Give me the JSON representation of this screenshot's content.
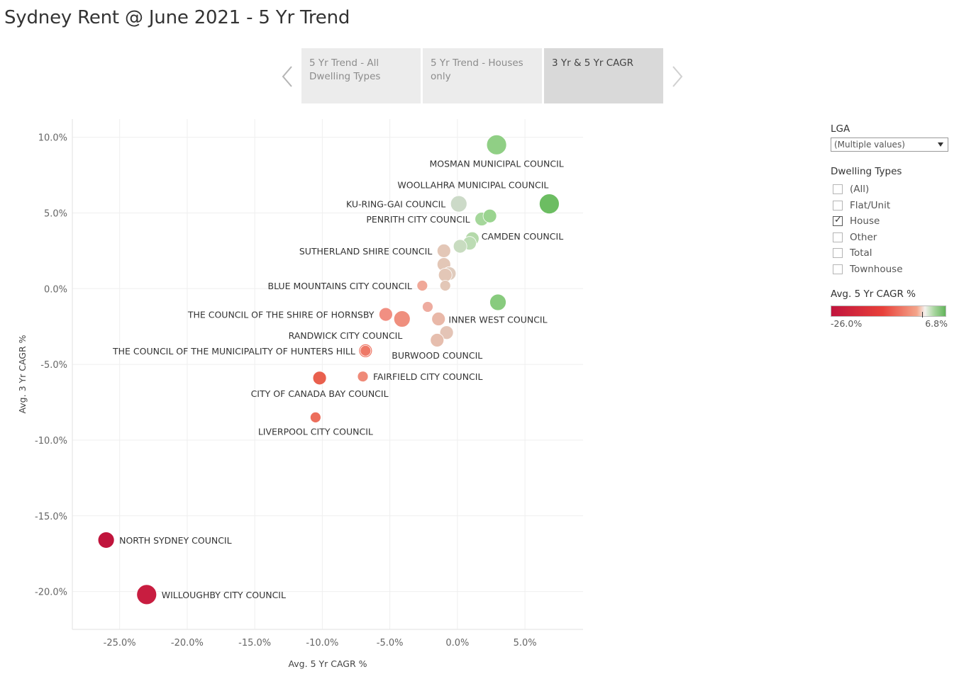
{
  "title": "Sydney Rent @ June 2021 - 5 Yr Trend",
  "nav": {
    "prev_icon": "chevron-left-icon",
    "next_icon": "chevron-right-icon",
    "tabs": [
      {
        "line1": "5 Yr Trend - All",
        "line2": "Dwelling Types"
      },
      {
        "line1": "5 Yr Trend - Houses",
        "line2": "only"
      },
      {
        "line1": "3 Yr & 5 Yr CAGR",
        "line2": ""
      }
    ]
  },
  "filters": {
    "lga_title": "LGA",
    "lga_value": "(Multiple values)",
    "dwelling_title": "Dwelling Types",
    "dwelling_options": [
      {
        "label": "(All)",
        "checked": false
      },
      {
        "label": "Flat/Unit",
        "checked": false
      },
      {
        "label": "House",
        "checked": true
      },
      {
        "label": "Other",
        "checked": false
      },
      {
        "label": "Total",
        "checked": false
      },
      {
        "label": "Townhouse",
        "checked": false
      }
    ],
    "legend_title": "Avg. 5 Yr CAGR %",
    "legend_min": "-26.0%",
    "legend_max": "6.8%",
    "legend_colors": [
      "#c0143c",
      "#e8403a",
      "#f4a58a",
      "#f4f1ee",
      "#a9d6a0",
      "#62b45a"
    ]
  },
  "chart_data": {
    "type": "scatter",
    "title": "3 Yr & 5 Yr CAGR",
    "xlabel": "Avg. 5 Yr CAGR %",
    "ylabel": "Avg. 3 Yr CAGR %",
    "xlim": [
      -28.5,
      9.3
    ],
    "ylim": [
      -22.5,
      11.2
    ],
    "xticks": [
      -25,
      -20,
      -15,
      -10,
      -5,
      0,
      5
    ],
    "yticks": [
      10,
      5,
      0,
      -5,
      -10,
      -15,
      -20
    ],
    "xtick_labels": [
      "-25.0%",
      "-20.0%",
      "-15.0%",
      "-10.0%",
      "-5.0%",
      "0.0%",
      "5.0%"
    ],
    "ytick_labels": [
      "10.0%",
      "5.0%",
      "0.0%",
      "-5.0%",
      "-10.0%",
      "-15.0%",
      "-20.0%"
    ],
    "size_encoding": "relative marker size",
    "points": [
      {
        "x": 2.9,
        "y": 9.5,
        "size": 3,
        "color": "#90cf85",
        "label": "MOSMAN MUNICIPAL COUNCIL",
        "label_pos": "below"
      },
      {
        "x": 6.8,
        "y": 5.6,
        "size": 3,
        "color": "#6cbd62",
        "label": "WOOLLAHRA MUNICIPAL COUNCIL",
        "label_pos": "above-left"
      },
      {
        "x": 0.1,
        "y": 5.6,
        "size": 2,
        "color": "#ccdac8",
        "label": "KU-RING-GAI COUNCIL",
        "label_pos": "left"
      },
      {
        "x": 1.8,
        "y": 4.6,
        "size": 1,
        "color": "#a5d79b",
        "label": "PENRITH CITY COUNCIL",
        "label_pos": "left"
      },
      {
        "x": 2.4,
        "y": 4.8,
        "size": 1,
        "color": "#9ad48f",
        "label": "",
        "label_pos": ""
      },
      {
        "x": 1.1,
        "y": 3.3,
        "size": 1,
        "color": "#b4d9aa",
        "label": "CAMDEN COUNCIL",
        "label_pos": "right"
      },
      {
        "x": 0.9,
        "y": 3.0,
        "size": 1,
        "color": "#bcdcb4",
        "label": "",
        "label_pos": ""
      },
      {
        "x": 0.2,
        "y": 2.8,
        "size": 1,
        "color": "#c8dcc0",
        "label": "",
        "label_pos": ""
      },
      {
        "x": -1.0,
        "y": 2.5,
        "size": 1,
        "color": "#e3c7b7",
        "label": "SUTHERLAND SHIRE COUNCIL",
        "label_pos": "left"
      },
      {
        "x": -1.0,
        "y": 1.6,
        "size": 1,
        "color": "#e3c7b7",
        "label": "",
        "label_pos": ""
      },
      {
        "x": -0.6,
        "y": 1.0,
        "size": 1,
        "color": "#e0ccbe",
        "label": "",
        "label_pos": ""
      },
      {
        "x": -0.9,
        "y": 0.9,
        "size": 1,
        "color": "#e3c7b7",
        "label": "",
        "label_pos": ""
      },
      {
        "x": -0.9,
        "y": 0.2,
        "size": 0,
        "color": "#e3c7b7",
        "label": "",
        "label_pos": ""
      },
      {
        "x": -2.6,
        "y": 0.2,
        "size": 0,
        "color": "#f0a898",
        "label": "BLUE MOUNTAINS CITY COUNCIL",
        "label_pos": "left"
      },
      {
        "x": 3.0,
        "y": -0.9,
        "size": 2,
        "color": "#88cb7e",
        "label": "INNER WEST COUNCIL",
        "label_pos": "below"
      },
      {
        "x": -2.2,
        "y": -1.2,
        "size": 0,
        "color": "#eeaca0",
        "label": "",
        "label_pos": ""
      },
      {
        "x": -5.3,
        "y": -1.7,
        "size": 1,
        "color": "#f18f82",
        "label": "THE COUNCIL OF THE SHIRE OF HORNSBY",
        "label_pos": "left"
      },
      {
        "x": -4.1,
        "y": -2.0,
        "size": 2,
        "color": "#ef8f7e",
        "label": "",
        "label_pos": ""
      },
      {
        "x": -1.4,
        "y": -2.0,
        "size": 1,
        "color": "#e9b8a8",
        "label": "",
        "label_pos": ""
      },
      {
        "x": -0.8,
        "y": -2.9,
        "size": 1,
        "color": "#e4c4b6",
        "label": "",
        "label_pos": ""
      },
      {
        "x": -1.5,
        "y": -3.4,
        "size": 1,
        "color": "#e6beae",
        "label": "BURWOOD COUNCIL",
        "label_pos": "below"
      },
      {
        "x": -6.8,
        "y": -4.1,
        "size": 1,
        "color": "#ee7866",
        "label": "RANDWICK CITY COUNCIL",
        "label_pos": "above-left"
      },
      {
        "x": -6.8,
        "y": -4.1,
        "size": 0,
        "color": "#ee7866",
        "label": "THE COUNCIL OF THE MUNICIPALITY OF HUNTERS HILL",
        "label_pos": "left"
      },
      {
        "x": -7.0,
        "y": -5.8,
        "size": 0,
        "color": "#ef8a78",
        "label": "FAIRFIELD CITY COUNCIL",
        "label_pos": "right"
      },
      {
        "x": -10.2,
        "y": -5.9,
        "size": 1,
        "color": "#e9604e",
        "label": "CITY OF CANADA BAY COUNCIL",
        "label_pos": "below"
      },
      {
        "x": -10.5,
        "y": -8.5,
        "size": 0,
        "color": "#ec6e5c",
        "label": "LIVERPOOL CITY COUNCIL",
        "label_pos": "below"
      },
      {
        "x": -26.0,
        "y": -16.6,
        "size": 2,
        "color": "#c0143c",
        "label": "NORTH SYDNEY COUNCIL",
        "label_pos": "right"
      },
      {
        "x": -23.0,
        "y": -20.2,
        "size": 3,
        "color": "#c81d40",
        "label": "WILLOUGHBY CITY COUNCIL",
        "label_pos": "right"
      }
    ]
  }
}
